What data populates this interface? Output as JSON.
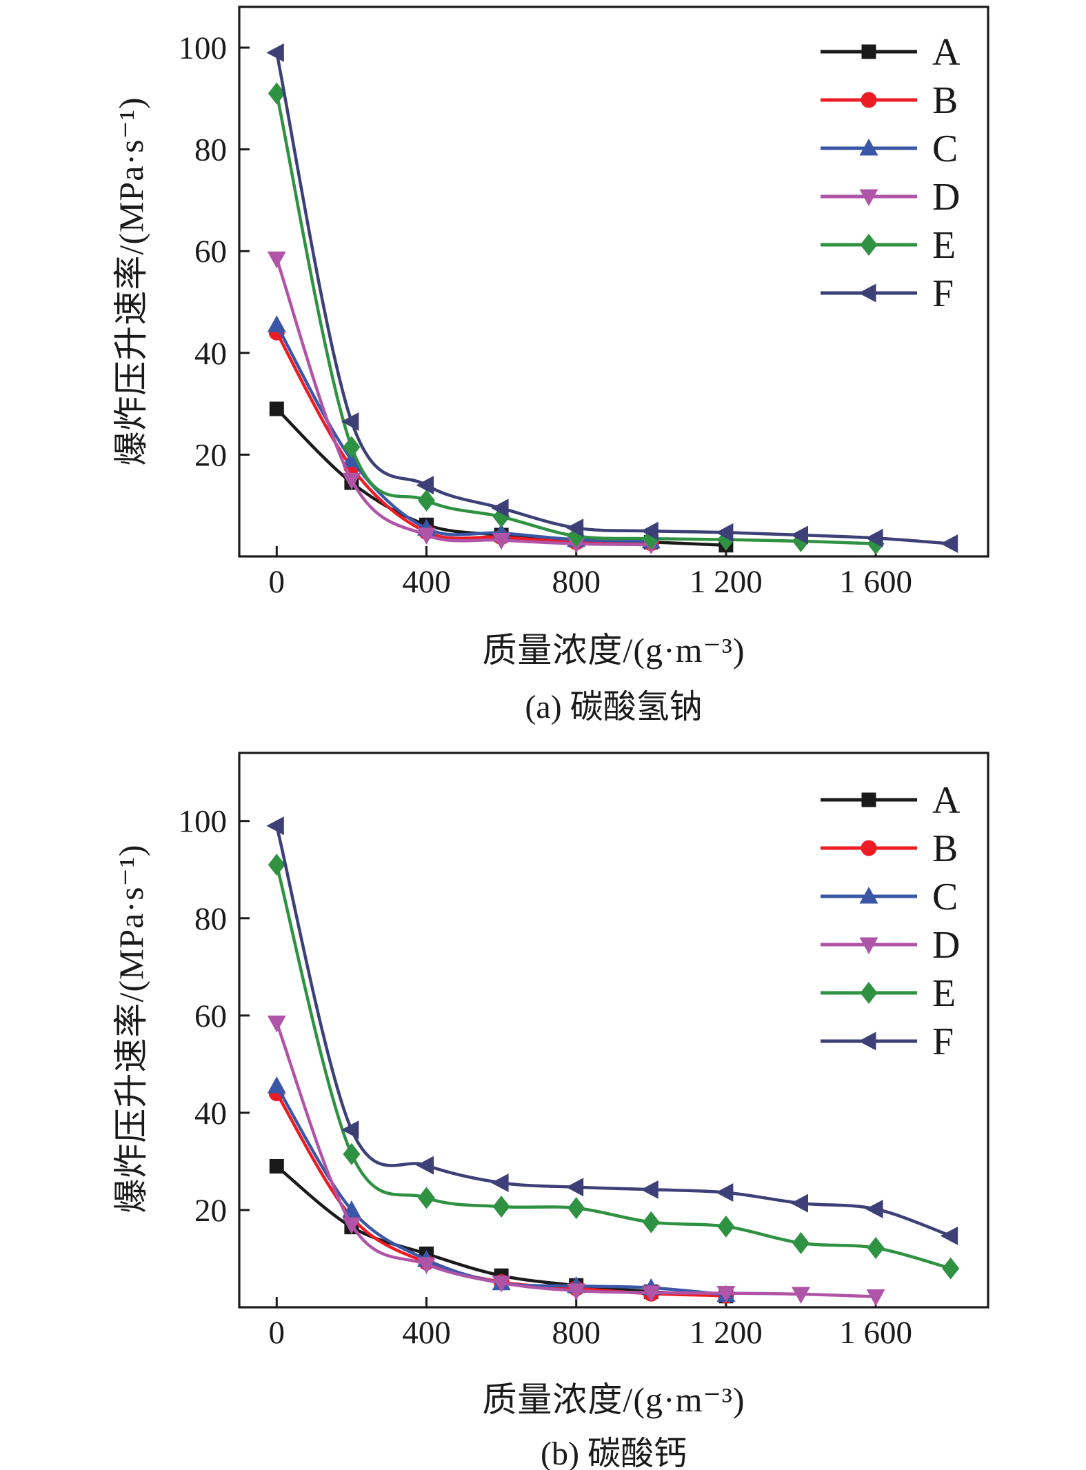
{
  "figure": {
    "background": "#ffffff",
    "axis_color": "#1a1a1a"
  },
  "chart_data": [
    {
      "type": "line",
      "caption": "(a) 碳酸氢钠",
      "xlabel": "质量浓度/(g·m⁻³)",
      "ylabel": "爆炸压升速率/(MPa·s⁻¹)",
      "x": [
        0,
        200,
        400,
        600,
        800,
        1000,
        1200,
        1400,
        1600,
        1800
      ],
      "xticks": [
        0,
        400,
        800,
        1200,
        1600
      ],
      "xtick_labels": [
        "0",
        "400",
        "800",
        "1 200",
        "1 600"
      ],
      "yticks": [
        20,
        40,
        60,
        80,
        100
      ],
      "ytick_labels": [
        "20",
        "40",
        "60",
        "80",
        "100"
      ],
      "xlim": [
        -100,
        1900
      ],
      "ylim": [
        0,
        108
      ],
      "grid": false,
      "legend_position": "upper right",
      "series": [
        {
          "name": "A",
          "color": "#1a1a1a",
          "marker": "square",
          "values": [
            29,
            14.5,
            6.2,
            4.2,
            3.2,
            2.8,
            2.2,
            null,
            null,
            null
          ]
        },
        {
          "name": "B",
          "color": "#ec1c24",
          "marker": "circle",
          "values": [
            44,
            17.5,
            4.8,
            3.8,
            2.8,
            2.6,
            null,
            null,
            null,
            null
          ]
        },
        {
          "name": "C",
          "color": "#3a57a7",
          "marker": "triangle-up",
          "values": [
            45.5,
            19,
            5.5,
            4.6,
            3.3,
            3.0,
            null,
            null,
            null,
            null
          ]
        },
        {
          "name": "D",
          "color": "#b054a8",
          "marker": "triangle-down",
          "values": [
            58.5,
            15,
            4.2,
            3.2,
            2.5,
            2.3,
            null,
            null,
            null,
            null
          ]
        },
        {
          "name": "E",
          "color": "#2f9142",
          "marker": "diamond",
          "values": [
            91,
            21.5,
            11,
            7.8,
            4.0,
            3.5,
            3.3,
            3.0,
            2.5,
            null
          ]
        },
        {
          "name": "F",
          "color": "#3c4077",
          "marker": "triangle-left",
          "values": [
            99,
            26.5,
            14,
            9.5,
            5.6,
            5.0,
            4.7,
            4.2,
            3.6,
            2.5
          ]
        }
      ]
    },
    {
      "type": "line",
      "caption": "(b) 碳酸钙",
      "xlabel": "质量浓度/(g·m⁻³)",
      "ylabel": "爆炸压升速率/(MPa·s⁻¹)",
      "x": [
        0,
        200,
        400,
        600,
        800,
        1000,
        1200,
        1400,
        1600,
        1800
      ],
      "xticks": [
        0,
        400,
        800,
        1200,
        1600
      ],
      "xtick_labels": [
        "0",
        "400",
        "800",
        "1 200",
        "1 600"
      ],
      "yticks": [
        20,
        40,
        60,
        80,
        100
      ],
      "ytick_labels": [
        "20",
        "40",
        "60",
        "80",
        "100"
      ],
      "xlim": [
        -100,
        1900
      ],
      "ylim": [
        0,
        114
      ],
      "grid": false,
      "legend_position": "upper right",
      "series": [
        {
          "name": "A",
          "color": "#1a1a1a",
          "marker": "square",
          "values": [
            29,
            16.5,
            11,
            6.5,
            4.5,
            3.2,
            2.3,
            null,
            null,
            null
          ]
        },
        {
          "name": "B",
          "color": "#ec1c24",
          "marker": "circle",
          "values": [
            44,
            18.5,
            9.2,
            5.2,
            3.9,
            2.8,
            2.4,
            null,
            null,
            null
          ]
        },
        {
          "name": "C",
          "color": "#3a57a7",
          "marker": "triangle-up",
          "values": [
            45.5,
            20,
            9.8,
            5.0,
            4.4,
            4.0,
            2.6,
            null,
            null,
            null
          ]
        },
        {
          "name": "D",
          "color": "#b054a8",
          "marker": "triangle-down",
          "values": [
            58.5,
            17,
            8.8,
            5.0,
            3.4,
            3.0,
            2.9,
            2.7,
            2.2,
            null
          ]
        },
        {
          "name": "E",
          "color": "#2f9142",
          "marker": "diamond",
          "values": [
            91,
            31.5,
            22.5,
            20.7,
            20.4,
            17.5,
            16.6,
            13.2,
            12.2,
            8.0
          ]
        },
        {
          "name": "F",
          "color": "#3c4077",
          "marker": "triangle-left",
          "values": [
            99,
            36.5,
            29.2,
            25.6,
            24.7,
            24.2,
            23.6,
            21.4,
            20.2,
            14.7
          ]
        }
      ]
    }
  ]
}
